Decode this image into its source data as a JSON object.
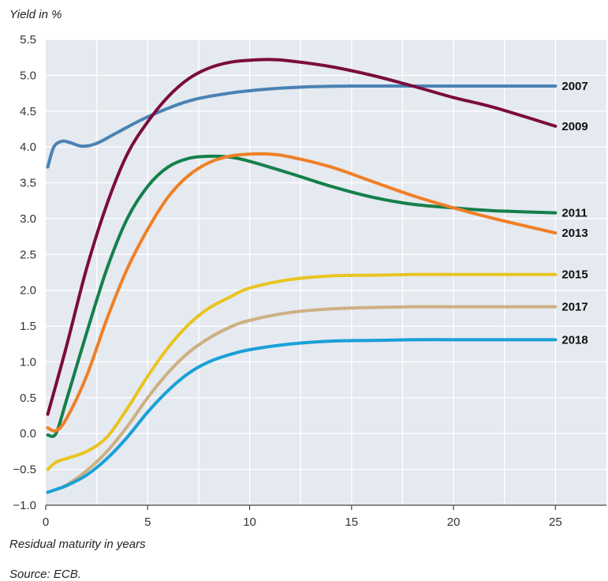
{
  "chart_data": {
    "type": "line",
    "title": "",
    "ylabel": "Yield in %",
    "xlabel": "Residual maturity in years",
    "source": "Source: ECB.",
    "xlim": [
      0,
      27.5
    ],
    "ylim": [
      -1.0,
      5.5
    ],
    "xticks": [
      0,
      5,
      10,
      15,
      20,
      25
    ],
    "xtick_labels": [
      "0",
      "5",
      "10",
      "15",
      "20",
      "25"
    ],
    "yticks": [
      5.5,
      5.0,
      4.5,
      4.0,
      3.5,
      3.0,
      2.5,
      2.0,
      1.5,
      1.0,
      0.5,
      0.0,
      -0.5,
      -1.0
    ],
    "ytick_labels": [
      "5.5",
      "5.0",
      "4.5",
      "4.0",
      "3.5",
      "3.0",
      "2.5",
      "2.0",
      "1.5",
      "1.0",
      "0.5",
      "0.0",
      "−0.5",
      "−1.0"
    ],
    "grid": true,
    "background": "#e5e9f0",
    "series": [
      {
        "name": "2007",
        "color": "#4a82b4",
        "x": [
          0.1,
          0.4,
          0.8,
          1.2,
          1.8,
          2.5,
          3.5,
          5,
          7,
          9,
          11,
          13,
          15,
          18,
          21,
          25
        ],
        "y": [
          3.72,
          4.0,
          4.08,
          4.06,
          4.01,
          4.05,
          4.2,
          4.42,
          4.64,
          4.75,
          4.81,
          4.84,
          4.85,
          4.85,
          4.85,
          4.85
        ]
      },
      {
        "name": "2009",
        "color": "#7a0c3e",
        "x": [
          0.1,
          1,
          2,
          3,
          4,
          5,
          6,
          7,
          8,
          9,
          10,
          11,
          12,
          14,
          16,
          18,
          20,
          22,
          25
        ],
        "y": [
          0.27,
          1.2,
          2.3,
          3.2,
          3.9,
          4.35,
          4.7,
          4.95,
          5.1,
          5.18,
          5.21,
          5.22,
          5.2,
          5.12,
          5.0,
          4.85,
          4.69,
          4.55,
          4.29
        ]
      },
      {
        "name": "2011",
        "color": "#14804a",
        "x": [
          0.1,
          0.5,
          1,
          2,
          3,
          4,
          5,
          6,
          7,
          8,
          9,
          10,
          12,
          14,
          16,
          18,
          20,
          22,
          25
        ],
        "y": [
          -0.02,
          0.0,
          0.45,
          1.4,
          2.3,
          3.0,
          3.45,
          3.72,
          3.84,
          3.87,
          3.86,
          3.8,
          3.63,
          3.45,
          3.3,
          3.2,
          3.15,
          3.11,
          3.08
        ]
      },
      {
        "name": "2013",
        "color": "#f07f26",
        "x": [
          0.1,
          0.5,
          1,
          2,
          3,
          4,
          5,
          6,
          7,
          8,
          9,
          10,
          11,
          12,
          14,
          16,
          18,
          20,
          22,
          25
        ],
        "y": [
          0.08,
          0.04,
          0.2,
          0.8,
          1.6,
          2.3,
          2.85,
          3.3,
          3.6,
          3.78,
          3.87,
          3.9,
          3.9,
          3.86,
          3.72,
          3.52,
          3.32,
          3.15,
          3.0,
          2.8
        ]
      },
      {
        "name": "2015",
        "color": "#e8c41f",
        "x": [
          0.1,
          0.5,
          1,
          2,
          3,
          4,
          5,
          6,
          7,
          8,
          9,
          10,
          12,
          14,
          16,
          18,
          20,
          22,
          25
        ],
        "y": [
          -0.5,
          -0.4,
          -0.35,
          -0.25,
          -0.05,
          0.35,
          0.8,
          1.2,
          1.52,
          1.75,
          1.9,
          2.03,
          2.15,
          2.2,
          2.21,
          2.22,
          2.22,
          2.22,
          2.22
        ]
      },
      {
        "name": "2017",
        "color": "#cdb082",
        "x": [
          0.1,
          0.5,
          1,
          2,
          3,
          4,
          5,
          6,
          7,
          8,
          9,
          10,
          12,
          14,
          16,
          18,
          20,
          22,
          25
        ],
        "y": [
          -0.82,
          -0.78,
          -0.72,
          -0.52,
          -0.25,
          0.1,
          0.5,
          0.85,
          1.13,
          1.33,
          1.48,
          1.58,
          1.69,
          1.74,
          1.76,
          1.77,
          1.77,
          1.77,
          1.77
        ]
      },
      {
        "name": "2018",
        "color": "#18a0d8",
        "x": [
          0.1,
          0.5,
          1,
          2,
          3,
          4,
          5,
          6,
          7,
          8,
          9,
          10,
          12,
          14,
          16,
          18,
          20,
          22,
          25
        ],
        "y": [
          -0.82,
          -0.78,
          -0.73,
          -0.58,
          -0.35,
          -0.05,
          0.3,
          0.6,
          0.84,
          1.0,
          1.1,
          1.17,
          1.25,
          1.29,
          1.3,
          1.31,
          1.31,
          1.31,
          1.31
        ]
      }
    ]
  }
}
